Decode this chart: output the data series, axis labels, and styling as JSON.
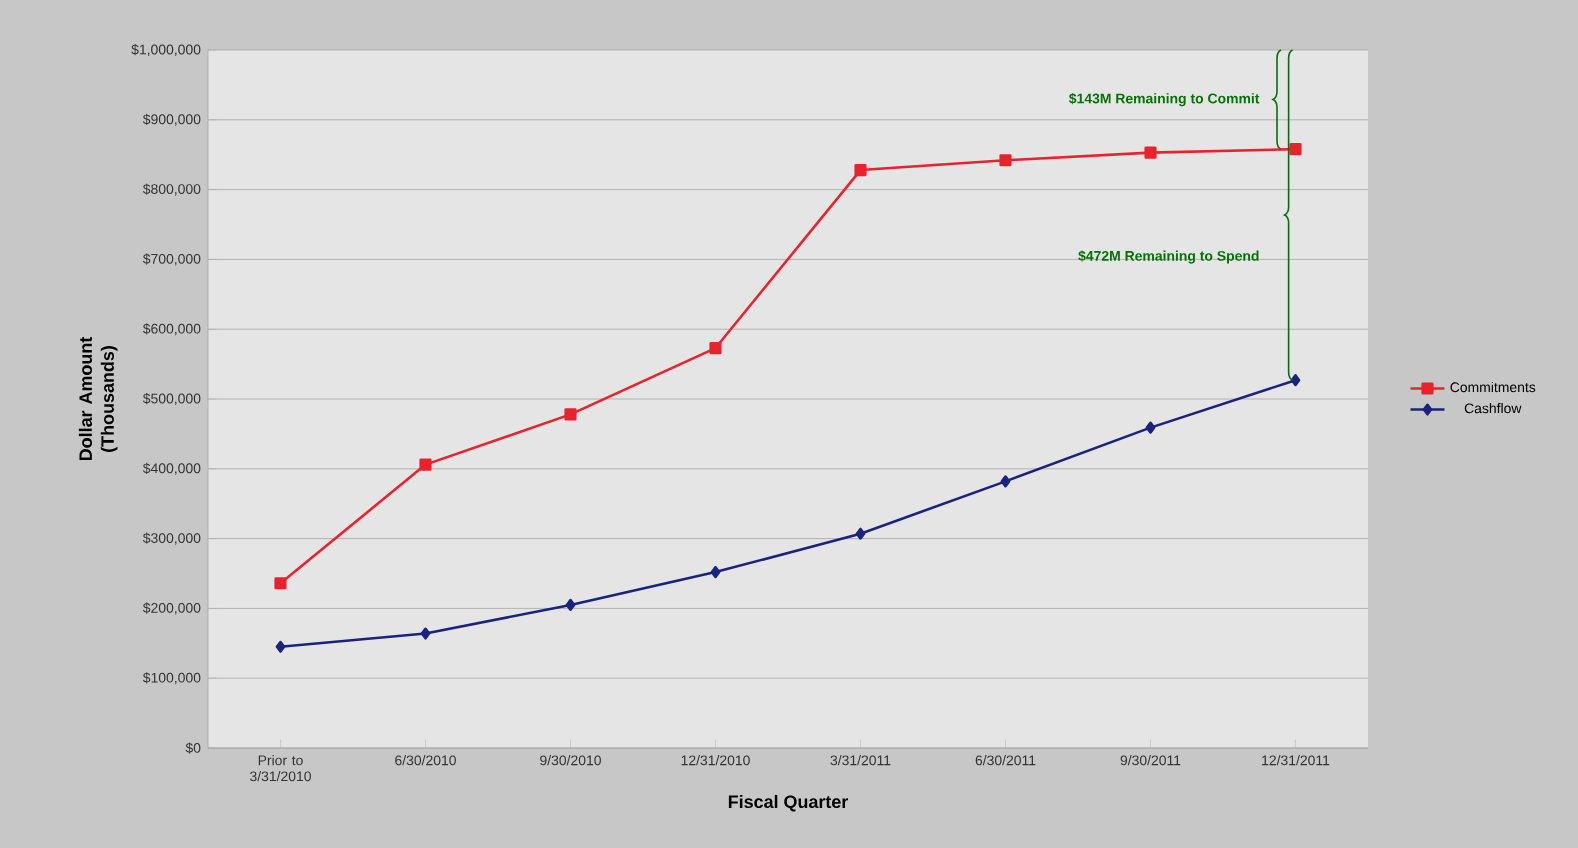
{
  "chart_data": {
    "type": "line",
    "xlabel": "Fiscal Quarter",
    "ylabel": "Dollar Amount (Thousands)",
    "categories": [
      "Prior to 3/31/2010",
      "6/30/2010",
      "9/30/2010",
      "12/31/2010",
      "3/31/2011",
      "6/30/2011",
      "9/30/2011",
      "12/31/2011"
    ],
    "series": [
      {
        "name": "Commitments",
        "color": "#e8232e",
        "marker": "square",
        "values": [
          236000,
          406000,
          478000,
          573000,
          828000,
          842000,
          853000,
          858000
        ]
      },
      {
        "name": "Cashflow",
        "color": "#1a237e",
        "marker": "diamond",
        "values": [
          145000,
          164000,
          205000,
          252000,
          307000,
          382000,
          459000,
          527000
        ]
      }
    ],
    "ylim": [
      0,
      1000000
    ],
    "yticks": [
      {
        "value": 0,
        "label": "$0"
      },
      {
        "value": 100000,
        "label": "$100,000"
      },
      {
        "value": 200000,
        "label": "$200,000"
      },
      {
        "value": 300000,
        "label": "$300,000"
      },
      {
        "value": 400000,
        "label": "$400,000"
      },
      {
        "value": 500000,
        "label": "$500,000"
      },
      {
        "value": 600000,
        "label": "$600,000"
      },
      {
        "value": 700000,
        "label": "$700,000"
      },
      {
        "value": 800000,
        "label": "$800,000"
      },
      {
        "value": 900000,
        "label": "$900,000"
      },
      {
        "value": 1000000,
        "label": "$1,000,000"
      }
    ],
    "grid": "y",
    "legend": "right",
    "annotations": [
      "$143M Remaining to Commit",
      "$472M Remaining to Spend"
    ]
  }
}
